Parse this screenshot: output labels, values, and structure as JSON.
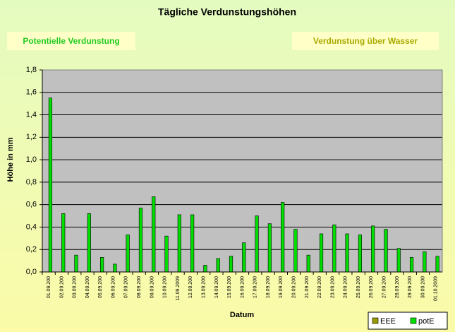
{
  "chart_data": {
    "type": "bar",
    "title": "Tägliche Verdunstungshöhen",
    "buttons": [
      "Potentielle Verdunstung",
      "Verdunstung über Wasser"
    ],
    "x_label": "Datum",
    "y_label": "Höhe in mm",
    "categories": [
      "01.09.200",
      "02.09.200",
      "03.09.200",
      "04.09.200",
      "05.09.200",
      "06.09.200",
      "07.09.200",
      "08.09.200",
      "09.09.200",
      "10.09.200",
      "11.09.2009",
      "12.09.200",
      "13.09.200",
      "14.09.200",
      "15.09.200",
      "16.09.200",
      "17.09.200",
      "18.09.200",
      "19.09.200",
      "20.09.200",
      "21.09.200",
      "22.09.200",
      "23.09.200",
      "24.09.200",
      "25.09.200",
      "26.09.200",
      "27.09.200",
      "28.09.200",
      "29.09.200",
      "30.09.200",
      "01.10.2009"
    ],
    "series": [
      {
        "name": "EEE",
        "color": "#999900",
        "values": [
          null,
          null,
          null,
          null,
          null,
          null,
          null,
          null,
          null,
          null,
          null,
          null,
          null,
          null,
          null,
          null,
          null,
          null,
          null,
          null,
          null,
          null,
          null,
          null,
          null,
          null,
          null,
          null,
          null,
          null,
          null
        ]
      },
      {
        "name": "potE",
        "color": "#00dd00",
        "values": [
          1.55,
          0.52,
          0.15,
          0.52,
          0.13,
          0.07,
          0.33,
          0.57,
          0.67,
          0.32,
          0.51,
          0.51,
          0.06,
          0.12,
          0.14,
          0.26,
          0.5,
          0.43,
          0.62,
          0.38,
          0.15,
          0.34,
          0.42,
          0.34,
          0.33,
          0.41,
          0.38,
          0.21,
          0.13,
          0.18,
          0.14
        ]
      }
    ],
    "ylim": [
      0,
      1.8
    ],
    "yticks": [
      {
        "value": 0,
        "label": "0,0"
      },
      {
        "value": 0.2,
        "label": "0,2"
      },
      {
        "value": 0.4,
        "label": "0,4"
      },
      {
        "value": 0.6,
        "label": "0,6"
      },
      {
        "value": 0.8,
        "label": "0,8"
      },
      {
        "value": 1.0,
        "label": "1,0"
      },
      {
        "value": 1.2,
        "label": "1,2"
      },
      {
        "value": 1.4,
        "label": "1,4"
      },
      {
        "value": 1.6,
        "label": "1,6"
      },
      {
        "value": 1.8,
        "label": "1,8"
      }
    ],
    "grid": true
  }
}
